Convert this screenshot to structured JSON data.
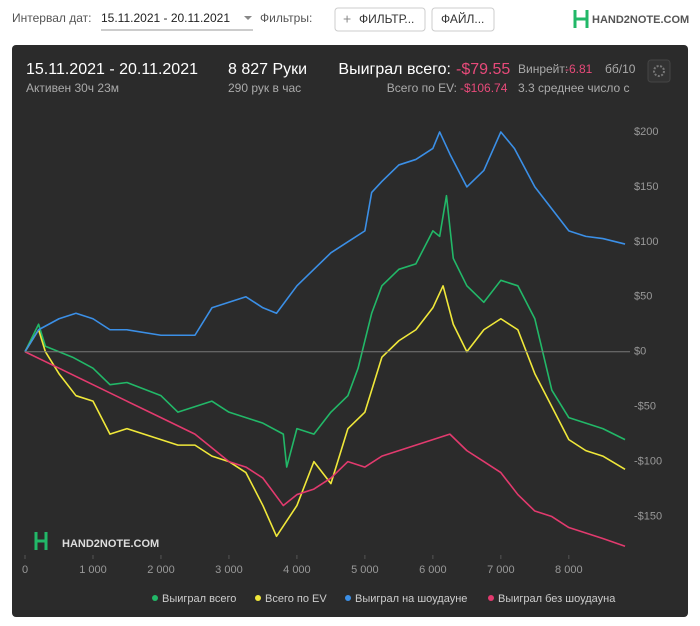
{
  "toolbar": {
    "date_label": "Интервал дат:",
    "date_value": "15.11.2021 - 20.11.2021",
    "filters_label": "Фильтры:",
    "filter_button": "ФИЛЬТР...",
    "file_button": "ФАЙЛ...",
    "logo": "HAND2NOTE.COM"
  },
  "summary": {
    "period": "15.11.2021 - 20.11.2021",
    "active": "Активен 30ч 23м",
    "hands": "8 827 Руки",
    "hands_rate": "290 рук в час",
    "won_label": "Выиграл всего:",
    "won_value": "-$79.55",
    "ev_label": "Всего по EV:",
    "ev_value": "-$106.74",
    "winrate_label": "Винрейт:",
    "winrate_value": "-6.81",
    "winrate_unit": "бб/10",
    "avg_note": "3.3 среднее число с"
  },
  "chart_data": {
    "type": "line",
    "watermark": "HAND2NOTE.COM",
    "xlim": [
      0,
      8900
    ],
    "ylim": [
      -185,
      220
    ],
    "xticks": [
      0,
      {
        "value": 1000,
        "label": "1 000"
      },
      {
        "value": 2000,
        "label": "2 000"
      },
      {
        "value": 3000,
        "label": "3 000"
      },
      {
        "value": 4000,
        "label": "4 000"
      },
      {
        "value": 5000,
        "label": "5 000"
      },
      {
        "value": 6000,
        "label": "6 000"
      },
      {
        "value": 7000,
        "label": "7 000"
      },
      {
        "value": 8000,
        "label": "8 000"
      }
    ],
    "yticks": [
      {
        "value": 200,
        "label": "$200"
      },
      {
        "value": 150,
        "label": "$150"
      },
      {
        "value": 100,
        "label": "$100"
      },
      {
        "value": 50,
        "label": "$50"
      },
      {
        "value": 0,
        "label": "$0"
      },
      {
        "value": -50,
        "label": "-$50"
      },
      {
        "value": -100,
        "label": "-$100"
      },
      {
        "value": -150,
        "label": "-$150"
      }
    ],
    "zero_line": true,
    "series": [
      {
        "name": "Выиграл всего",
        "color": "#22b868",
        "x": [
          0,
          200,
          300,
          500,
          700,
          1000,
          1250,
          1500,
          2000,
          2250,
          2500,
          2750,
          3000,
          3250,
          3500,
          3800,
          3850,
          4000,
          4250,
          4500,
          4750,
          4900,
          5000,
          5100,
          5250,
          5500,
          5750,
          6000,
          6100,
          6200,
          6300,
          6500,
          6750,
          7000,
          7250,
          7500,
          7750,
          8000,
          8250,
          8500,
          8827
        ],
        "values": [
          0,
          25,
          5,
          0,
          -5,
          -15,
          -30,
          -28,
          -40,
          -55,
          -50,
          -45,
          -55,
          -60,
          -65,
          -75,
          -105,
          -70,
          -75,
          -55,
          -40,
          -15,
          10,
          35,
          60,
          75,
          80,
          110,
          105,
          142,
          85,
          60,
          45,
          65,
          60,
          30,
          -35,
          -60,
          -65,
          -70,
          -80
        ]
      },
      {
        "name": "Всего по EV",
        "color": "#f0e83a",
        "x": [
          0,
          200,
          300,
          500,
          750,
          1000,
          1250,
          1500,
          2000,
          2250,
          2500,
          2750,
          3000,
          3250,
          3500,
          3700,
          4000,
          4250,
          4500,
          4750,
          5000,
          5250,
          5500,
          5750,
          6000,
          6150,
          6300,
          6500,
          6750,
          7000,
          7250,
          7500,
          7750,
          8000,
          8250,
          8500,
          8827
        ],
        "values": [
          0,
          20,
          0,
          -20,
          -40,
          -45,
          -75,
          -70,
          -80,
          -85,
          -85,
          -95,
          -100,
          -110,
          -140,
          -168,
          -140,
          -100,
          -120,
          -70,
          -55,
          -5,
          10,
          20,
          40,
          60,
          25,
          0,
          20,
          30,
          20,
          -20,
          -50,
          -80,
          -90,
          -95,
          -107
        ]
      },
      {
        "name": "Выиграл на шоудауне",
        "color": "#3b8fe6",
        "x": [
          0,
          200,
          500,
          750,
          1000,
          1250,
          1500,
          2000,
          2500,
          2750,
          3000,
          3250,
          3500,
          3700,
          4000,
          4250,
          4500,
          4750,
          5000,
          5100,
          5250,
          5500,
          5750,
          6000,
          6100,
          6250,
          6500,
          6750,
          7000,
          7200,
          7500,
          7750,
          8000,
          8250,
          8500,
          8827
        ],
        "values": [
          0,
          20,
          30,
          35,
          30,
          20,
          20,
          15,
          15,
          40,
          45,
          50,
          40,
          35,
          60,
          75,
          90,
          100,
          110,
          145,
          155,
          170,
          175,
          185,
          200,
          180,
          150,
          165,
          200,
          185,
          150,
          130,
          110,
          105,
          103,
          98
        ]
      },
      {
        "name": "Выиграл без шоудауна",
        "color": "#e23a6e",
        "x": [
          0,
          500,
          1000,
          1500,
          2000,
          2500,
          3000,
          3250,
          3500,
          3800,
          4000,
          4250,
          4500,
          4750,
          5000,
          5250,
          5500,
          5750,
          6000,
          6250,
          6500,
          6750,
          7000,
          7250,
          7500,
          7750,
          8000,
          8250,
          8500,
          8827
        ],
        "values": [
          0,
          -15,
          -30,
          -45,
          -60,
          -75,
          -100,
          -105,
          -115,
          -140,
          -130,
          -125,
          -115,
          -100,
          -105,
          -95,
          -90,
          -85,
          -80,
          -75,
          -90,
          -100,
          -110,
          -130,
          -145,
          -150,
          -160,
          -165,
          -170,
          -177
        ]
      }
    ]
  }
}
